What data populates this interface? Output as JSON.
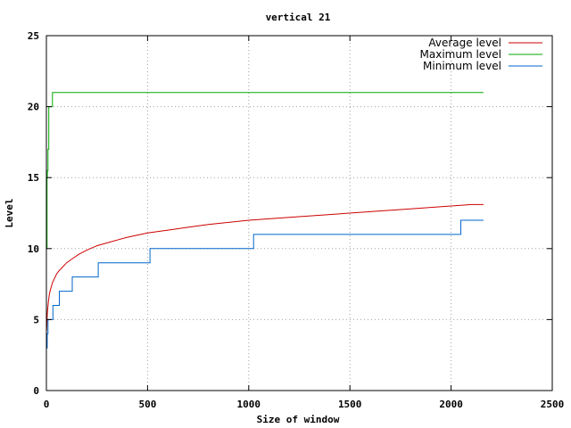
{
  "chart_data": {
    "type": "line",
    "title": "vertical 21",
    "xlabel": "Size of window",
    "ylabel": "Level",
    "xlim": [
      0,
      2500
    ],
    "ylim": [
      0,
      25
    ],
    "xticks": [
      0,
      500,
      1000,
      1500,
      2000,
      2500
    ],
    "yticks": [
      0,
      5,
      10,
      15,
      20,
      25
    ],
    "grid": true,
    "legend_position": "top-right",
    "series": [
      {
        "name": "Average level",
        "color": "#cc0000",
        "x": [
          1,
          5,
          10,
          15,
          20,
          30,
          40,
          50,
          60,
          80,
          100,
          130,
          160,
          200,
          250,
          300,
          350,
          400,
          500,
          600,
          700,
          800,
          1000,
          1200,
          1400,
          1600,
          1800,
          2000,
          2100,
          2160
        ],
        "y": [
          4.2,
          5.5,
          6.3,
          6.8,
          7.1,
          7.6,
          7.9,
          8.2,
          8.4,
          8.7,
          9.0,
          9.3,
          9.6,
          9.9,
          10.2,
          10.4,
          10.6,
          10.8,
          11.1,
          11.3,
          11.5,
          11.7,
          12.0,
          12.2,
          12.4,
          12.6,
          12.8,
          13.0,
          13.1,
          13.1
        ]
      },
      {
        "name": "Maximum level",
        "color": "#00aa00",
        "x": [
          1,
          3,
          5,
          8,
          12,
          20,
          30,
          2160
        ],
        "y": [
          10,
          15,
          15.5,
          17,
          20,
          20,
          21,
          21
        ]
      },
      {
        "name": "Minimum level",
        "color": "#0066cc",
        "x": [
          1,
          4,
          8,
          16,
          32,
          64,
          128,
          256,
          512,
          1024,
          2048,
          2160
        ],
        "y": [
          3,
          4,
          5,
          5,
          6,
          7,
          8,
          9,
          10,
          11,
          12,
          12
        ]
      }
    ]
  }
}
